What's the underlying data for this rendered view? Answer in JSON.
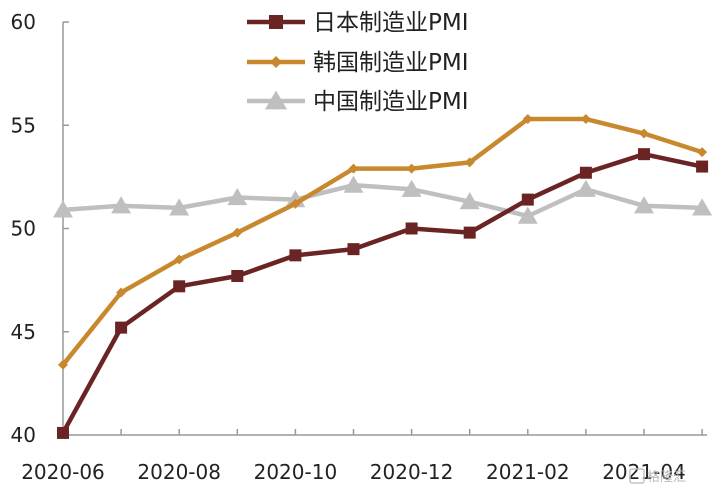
{
  "chart_data": {
    "type": "line",
    "x": [
      "2020-06",
      "2020-07",
      "2020-08",
      "2020-09",
      "2020-10",
      "2020-11",
      "2020-12",
      "2021-01",
      "2021-02",
      "2021-03",
      "2021-04",
      "2021-05"
    ],
    "x_tick_labels": [
      "2020-06",
      "2020-08",
      "2020-10",
      "2020-12",
      "2021-02",
      "2021-04"
    ],
    "y_tick_labels": [
      "40",
      "45",
      "50",
      "55",
      "60"
    ],
    "ylim": [
      40,
      60
    ],
    "grid": false,
    "legend_position": "top",
    "series": [
      {
        "name": "日本制造业PMI",
        "color": "#6b2424",
        "marker": "square",
        "values": [
          40.1,
          45.2,
          47.2,
          47.7,
          48.7,
          49.0,
          50.0,
          49.8,
          51.4,
          52.7,
          53.6,
          53.0
        ]
      },
      {
        "name": "韩国制造业PMI",
        "color": "#c8892e",
        "marker": "diamond",
        "values": [
          43.4,
          46.9,
          48.5,
          49.8,
          51.2,
          52.9,
          52.9,
          53.2,
          55.3,
          55.3,
          54.6,
          53.7
        ]
      },
      {
        "name": "中国制造业PMI",
        "color": "#bfbfbf",
        "marker": "triangle",
        "values": [
          50.9,
          51.1,
          51.0,
          51.5,
          51.4,
          52.1,
          51.9,
          51.3,
          50.6,
          51.9,
          51.1,
          51.0
        ]
      }
    ]
  },
  "watermark": "格隆汇"
}
